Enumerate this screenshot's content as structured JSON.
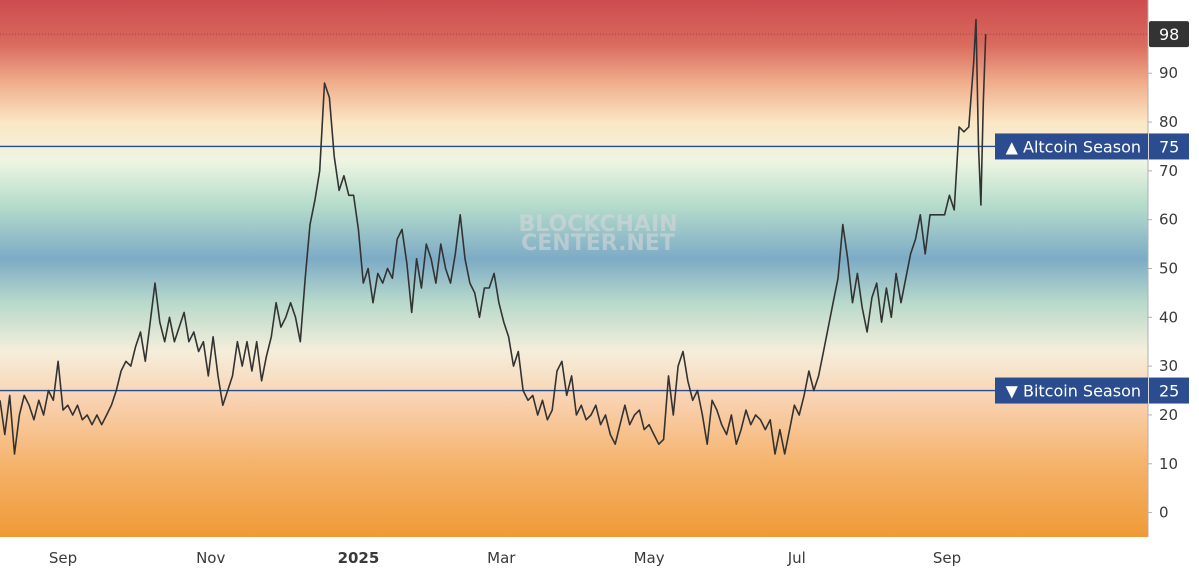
{
  "chart_data": {
    "type": "line",
    "title": "",
    "watermark": [
      "BLOCKCHAIN",
      "CENTER.NET"
    ],
    "ylim": [
      -5,
      105
    ],
    "y_ticks": [
      0,
      10,
      20,
      30,
      40,
      50,
      60,
      70,
      80,
      90
    ],
    "y_tick_labels": [
      "0",
      "10",
      "20",
      "30",
      "40",
      "50",
      "60",
      "70",
      "80",
      "90"
    ],
    "x_ticks": [
      {
        "label": "Sep",
        "date": "2024-09-01"
      },
      {
        "label": "Nov",
        "date": "2024-11-01"
      },
      {
        "label": "2025",
        "date": "2025-01-01",
        "bold": true
      },
      {
        "label": "Mar",
        "date": "2025-03-01"
      },
      {
        "label": "May",
        "date": "2025-05-01"
      },
      {
        "label": "Jul",
        "date": "2025-07-01"
      },
      {
        "label": "Sep",
        "date": "2025-09-01"
      }
    ],
    "xlim": [
      "2024-08-06",
      "2025-11-23"
    ],
    "background_gradient": [
      {
        "value": 105,
        "color": "#cd4c4f"
      },
      {
        "value": 96,
        "color": "#d96a5e"
      },
      {
        "value": 88,
        "color": "#f0ae8c"
      },
      {
        "value": 80,
        "color": "#fbe6c4"
      },
      {
        "value": 72,
        "color": "#eef5e2"
      },
      {
        "value": 63,
        "color": "#b6dccb"
      },
      {
        "value": 52,
        "color": "#7dabc6"
      },
      {
        "value": 43,
        "color": "#b8d9cb"
      },
      {
        "value": 33,
        "color": "#f5eedb"
      },
      {
        "value": 22,
        "color": "#f9cfac"
      },
      {
        "value": 10,
        "color": "#f5b36c"
      },
      {
        "value": -5,
        "color": "#f09a36"
      }
    ],
    "reference_lines": [
      {
        "value": 75,
        "label": "▲ Altcoin Season",
        "value_label": "75",
        "color": "#2b4c8e"
      },
      {
        "value": 25,
        "label": "▼ Bitcoin Season",
        "value_label": "25",
        "color": "#2b4c8e"
      }
    ],
    "last_value": {
      "value": 98,
      "label": "98",
      "color": "#333333"
    },
    "series": [
      {
        "color": "#333333",
        "points": [
          [
            "2024-08-06",
            23
          ],
          [
            "2024-08-08",
            16
          ],
          [
            "2024-08-10",
            24
          ],
          [
            "2024-08-12",
            12
          ],
          [
            "2024-08-14",
            20
          ],
          [
            "2024-08-16",
            24
          ],
          [
            "2024-08-18",
            22
          ],
          [
            "2024-08-20",
            19
          ],
          [
            "2024-08-22",
            23
          ],
          [
            "2024-08-24",
            20
          ],
          [
            "2024-08-26",
            25
          ],
          [
            "2024-08-28",
            23
          ],
          [
            "2024-08-30",
            31
          ],
          [
            "2024-09-01",
            21
          ],
          [
            "2024-09-03",
            22
          ],
          [
            "2024-09-05",
            20
          ],
          [
            "2024-09-07",
            22
          ],
          [
            "2024-09-09",
            19
          ],
          [
            "2024-09-11",
            20
          ],
          [
            "2024-09-13",
            18
          ],
          [
            "2024-09-15",
            20
          ],
          [
            "2024-09-17",
            18
          ],
          [
            "2024-09-19",
            20
          ],
          [
            "2024-09-21",
            22
          ],
          [
            "2024-09-23",
            25
          ],
          [
            "2024-09-25",
            29
          ],
          [
            "2024-09-27",
            31
          ],
          [
            "2024-09-29",
            30
          ],
          [
            "2024-10-01",
            34
          ],
          [
            "2024-10-03",
            37
          ],
          [
            "2024-10-05",
            31
          ],
          [
            "2024-10-07",
            39
          ],
          [
            "2024-10-09",
            47
          ],
          [
            "2024-10-11",
            39
          ],
          [
            "2024-10-13",
            35
          ],
          [
            "2024-10-15",
            40
          ],
          [
            "2024-10-17",
            35
          ],
          [
            "2024-10-19",
            38
          ],
          [
            "2024-10-21",
            41
          ],
          [
            "2024-10-23",
            35
          ],
          [
            "2024-10-25",
            37
          ],
          [
            "2024-10-27",
            33
          ],
          [
            "2024-10-29",
            35
          ],
          [
            "2024-10-31",
            28
          ],
          [
            "2024-11-02",
            36
          ],
          [
            "2024-11-04",
            28
          ],
          [
            "2024-11-06",
            22
          ],
          [
            "2024-11-08",
            25
          ],
          [
            "2024-11-10",
            28
          ],
          [
            "2024-11-12",
            35
          ],
          [
            "2024-11-14",
            30
          ],
          [
            "2024-11-16",
            35
          ],
          [
            "2024-11-18",
            29
          ],
          [
            "2024-11-20",
            35
          ],
          [
            "2024-11-22",
            27
          ],
          [
            "2024-11-24",
            32
          ],
          [
            "2024-11-26",
            36
          ],
          [
            "2024-11-28",
            43
          ],
          [
            "2024-11-30",
            38
          ],
          [
            "2024-12-02",
            40
          ],
          [
            "2024-12-04",
            43
          ],
          [
            "2024-12-06",
            40
          ],
          [
            "2024-12-08",
            35
          ],
          [
            "2024-12-10",
            48
          ],
          [
            "2024-12-12",
            59
          ],
          [
            "2024-12-14",
            64
          ],
          [
            "2024-12-16",
            70
          ],
          [
            "2024-12-18",
            88
          ],
          [
            "2024-12-20",
            85
          ],
          [
            "2024-12-22",
            73
          ],
          [
            "2024-12-24",
            66
          ],
          [
            "2024-12-26",
            69
          ],
          [
            "2024-12-28",
            65
          ],
          [
            "2024-12-30",
            65
          ],
          [
            "2025-01-01",
            58
          ],
          [
            "2025-01-03",
            47
          ],
          [
            "2025-01-05",
            50
          ],
          [
            "2025-01-07",
            43
          ],
          [
            "2025-01-09",
            49
          ],
          [
            "2025-01-11",
            47
          ],
          [
            "2025-01-13",
            50
          ],
          [
            "2025-01-15",
            48
          ],
          [
            "2025-01-17",
            56
          ],
          [
            "2025-01-19",
            58
          ],
          [
            "2025-01-21",
            51
          ],
          [
            "2025-01-23",
            41
          ],
          [
            "2025-01-25",
            52
          ],
          [
            "2025-01-27",
            46
          ],
          [
            "2025-01-29",
            55
          ],
          [
            "2025-01-31",
            52
          ],
          [
            "2025-02-02",
            47
          ],
          [
            "2025-02-04",
            55
          ],
          [
            "2025-02-06",
            50
          ],
          [
            "2025-02-08",
            47
          ],
          [
            "2025-02-10",
            53
          ],
          [
            "2025-02-12",
            61
          ],
          [
            "2025-02-14",
            52
          ],
          [
            "2025-02-16",
            47
          ],
          [
            "2025-02-18",
            45
          ],
          [
            "2025-02-20",
            40
          ],
          [
            "2025-02-22",
            46
          ],
          [
            "2025-02-24",
            46
          ],
          [
            "2025-02-26",
            49
          ],
          [
            "2025-02-28",
            43
          ],
          [
            "2025-03-02",
            39
          ],
          [
            "2025-03-04",
            36
          ],
          [
            "2025-03-06",
            30
          ],
          [
            "2025-03-08",
            33
          ],
          [
            "2025-03-10",
            25
          ],
          [
            "2025-03-12",
            23
          ],
          [
            "2025-03-14",
            24
          ],
          [
            "2025-03-16",
            20
          ],
          [
            "2025-03-18",
            23
          ],
          [
            "2025-03-20",
            19
          ],
          [
            "2025-03-22",
            21
          ],
          [
            "2025-03-24",
            29
          ],
          [
            "2025-03-26",
            31
          ],
          [
            "2025-03-28",
            24
          ],
          [
            "2025-03-30",
            28
          ],
          [
            "2025-04-01",
            20
          ],
          [
            "2025-04-03",
            22
          ],
          [
            "2025-04-05",
            19
          ],
          [
            "2025-04-07",
            20
          ],
          [
            "2025-04-09",
            22
          ],
          [
            "2025-04-11",
            18
          ],
          [
            "2025-04-13",
            20
          ],
          [
            "2025-04-15",
            16
          ],
          [
            "2025-04-17",
            14
          ],
          [
            "2025-04-19",
            18
          ],
          [
            "2025-04-21",
            22
          ],
          [
            "2025-04-23",
            18
          ],
          [
            "2025-04-25",
            20
          ],
          [
            "2025-04-27",
            21
          ],
          [
            "2025-04-29",
            17
          ],
          [
            "2025-05-01",
            18
          ],
          [
            "2025-05-03",
            16
          ],
          [
            "2025-05-05",
            14
          ],
          [
            "2025-05-07",
            15
          ],
          [
            "2025-05-09",
            28
          ],
          [
            "2025-05-11",
            20
          ],
          [
            "2025-05-13",
            30
          ],
          [
            "2025-05-15",
            33
          ],
          [
            "2025-05-17",
            27
          ],
          [
            "2025-05-19",
            23
          ],
          [
            "2025-05-21",
            25
          ],
          [
            "2025-05-23",
            20
          ],
          [
            "2025-05-25",
            14
          ],
          [
            "2025-05-27",
            23
          ],
          [
            "2025-05-29",
            21
          ],
          [
            "2025-05-31",
            18
          ],
          [
            "2025-06-02",
            16
          ],
          [
            "2025-06-04",
            20
          ],
          [
            "2025-06-06",
            14
          ],
          [
            "2025-06-08",
            17
          ],
          [
            "2025-06-10",
            21
          ],
          [
            "2025-06-12",
            18
          ],
          [
            "2025-06-14",
            20
          ],
          [
            "2025-06-16",
            19
          ],
          [
            "2025-06-18",
            17
          ],
          [
            "2025-06-20",
            19
          ],
          [
            "2025-06-22",
            12
          ],
          [
            "2025-06-24",
            17
          ],
          [
            "2025-06-26",
            12
          ],
          [
            "2025-06-28",
            17
          ],
          [
            "2025-06-30",
            22
          ],
          [
            "2025-07-02",
            20
          ],
          [
            "2025-07-04",
            24
          ],
          [
            "2025-07-06",
            29
          ],
          [
            "2025-07-08",
            25
          ],
          [
            "2025-07-10",
            28
          ],
          [
            "2025-07-12",
            33
          ],
          [
            "2025-07-14",
            38
          ],
          [
            "2025-07-16",
            43
          ],
          [
            "2025-07-18",
            48
          ],
          [
            "2025-07-20",
            59
          ],
          [
            "2025-07-22",
            52
          ],
          [
            "2025-07-24",
            43
          ],
          [
            "2025-07-26",
            49
          ],
          [
            "2025-07-28",
            42
          ],
          [
            "2025-07-30",
            37
          ],
          [
            "2025-08-01",
            44
          ],
          [
            "2025-08-03",
            47
          ],
          [
            "2025-08-05",
            39
          ],
          [
            "2025-08-07",
            46
          ],
          [
            "2025-08-09",
            40
          ],
          [
            "2025-08-11",
            49
          ],
          [
            "2025-08-13",
            43
          ],
          [
            "2025-08-15",
            48
          ],
          [
            "2025-08-17",
            53
          ],
          [
            "2025-08-19",
            56
          ],
          [
            "2025-08-21",
            61
          ],
          [
            "2025-08-23",
            53
          ],
          [
            "2025-08-25",
            61
          ],
          [
            "2025-08-27",
            61
          ],
          [
            "2025-08-29",
            61
          ],
          [
            "2025-08-31",
            61
          ],
          [
            "2025-09-02",
            65
          ],
          [
            "2025-09-04",
            62
          ],
          [
            "2025-09-06",
            79
          ],
          [
            "2025-09-08",
            78
          ],
          [
            "2025-09-10",
            79
          ],
          [
            "2025-09-12",
            92
          ],
          [
            "2025-09-13",
            101
          ],
          [
            "2025-09-14",
            75
          ],
          [
            "2025-09-15",
            63
          ],
          [
            "2025-09-16",
            84
          ],
          [
            "2025-09-17",
            98
          ]
        ]
      }
    ]
  }
}
